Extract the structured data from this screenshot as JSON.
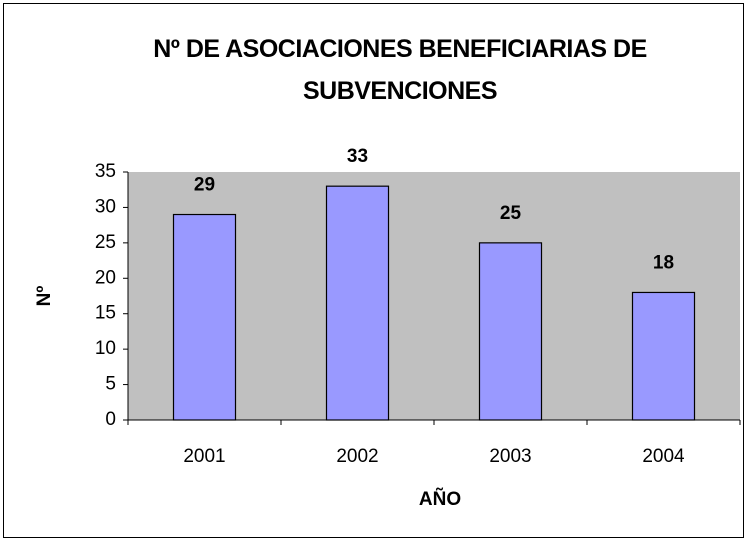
{
  "chart_data": {
    "type": "bar",
    "title": "Nº DE ASOCIACIONES BENEFICIARIAS DE SUBVENCIONES",
    "x_label": "AÑO",
    "y_label": "Nº",
    "categories": [
      "2001",
      "2002",
      "2003",
      "2004"
    ],
    "values": [
      29,
      33,
      25,
      18
    ],
    "color": "#9999ff",
    "plot_background": "#c0c0c0",
    "ylim": [
      0,
      35
    ],
    "yticks": [
      0,
      5,
      10,
      15,
      20,
      25,
      30,
      35
    ],
    "grid": false
  }
}
